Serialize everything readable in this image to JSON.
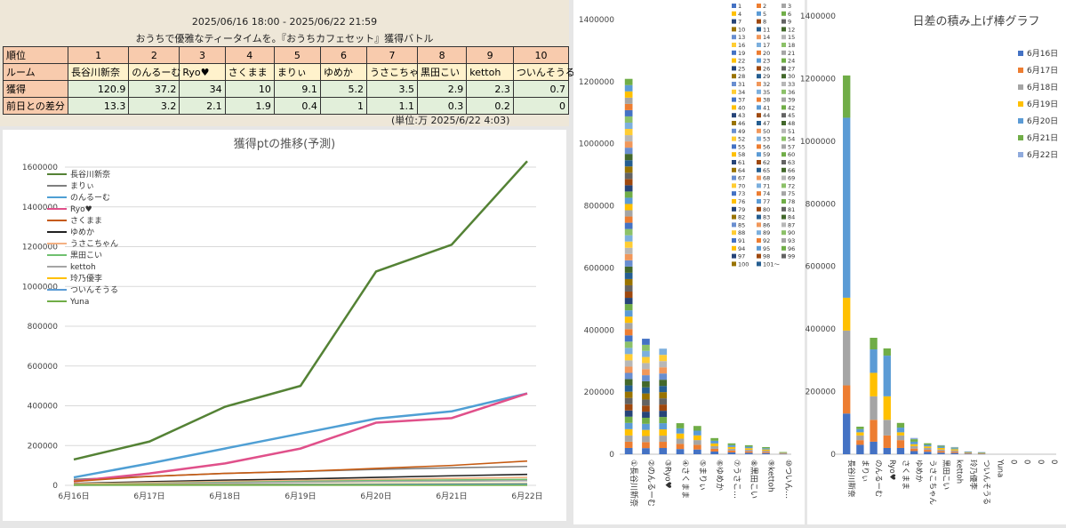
{
  "header": {
    "period": "2025/06/16 18:00 - 2025/06/22 21:59",
    "subtitle": "おうちで優雅なティータイムを。『おうちカフェセット』獲得バトル",
    "unit_note": "(単位:万  2025/6/22 4:03)"
  },
  "table": {
    "row_labels": [
      "順位",
      "ルーム",
      "獲得",
      "前日との差分"
    ],
    "ranks": [
      "1",
      "2",
      "3",
      "4",
      "5",
      "6",
      "7",
      "8",
      "9",
      "10"
    ],
    "rooms": [
      "長谷川新奈",
      "のんるーむ",
      "Ryo♥",
      "さくまま",
      "まりぃ",
      "ゆめか",
      "うさこちゃ",
      "黒田こい",
      "kettoh",
      "ついんそうる"
    ],
    "scores": [
      "120.9",
      "37.2",
      "34",
      "10",
      "9.1",
      "5.2",
      "3.5",
      "2.9",
      "2.3",
      "0.7"
    ],
    "diffs": [
      "13.3",
      "3.2",
      "2.1",
      "1.9",
      "0.4",
      "1",
      "1.1",
      "0.3",
      "0.2",
      "0"
    ]
  },
  "line_chart": {
    "title": "獲得ptの推移(予測)",
    "colors": {
      "長谷川新奈": "#548235",
      "まりぃ": "#7f7f7f",
      "のんるーむ": "#4f9fd4",
      "Ryo♥": "#e0508a",
      "さくまま": "#c55a11",
      "ゆめか": "#222222",
      "うさこちゃん": "#f4b183",
      "黒田こい": "#70c070",
      "kettoh": "#a5a5a5",
      "玲乃優李": "#ffc000",
      "ついんそうる": "#5b9bd5",
      "Yuna": "#70ad47"
    }
  },
  "mid_chart": {
    "categories": [
      "①長谷川新奈",
      "②のんるーむ",
      "③Ryo♥",
      "④さくまま",
      "⑤まりぃ",
      "⑥ゆめか",
      "⑦うさこ…",
      "⑧黒田こい",
      "⑨kettoh",
      "⑩ついん…"
    ],
    "legend": [
      "1",
      "2",
      "3",
      "4",
      "5",
      "6",
      "7",
      "8",
      "9",
      "10",
      "11",
      "12",
      "13",
      "14",
      "15",
      "16",
      "17",
      "18",
      "19",
      "20",
      "21",
      "22",
      "23",
      "24",
      "25",
      "26",
      "27",
      "28",
      "29",
      "30",
      "31",
      "32",
      "33",
      "34",
      "35",
      "36",
      "37",
      "38",
      "39",
      "40",
      "41",
      "42",
      "43",
      "44",
      "45",
      "46",
      "47",
      "48",
      "49",
      "50",
      "51",
      "52",
      "53",
      "54",
      "55",
      "56",
      "57",
      "58",
      "59",
      "60",
      "61",
      "62",
      "63",
      "64",
      "65",
      "66",
      "67",
      "68",
      "69",
      "70",
      "71",
      "72",
      "73",
      "74",
      "75",
      "76",
      "77",
      "78",
      "79",
      "80",
      "81",
      "82",
      "83",
      "84",
      "85",
      "86",
      "87",
      "88",
      "89",
      "90",
      "91",
      "92",
      "93",
      "94",
      "95",
      "96",
      "97",
      "98",
      "99",
      "100",
      "101～"
    ]
  },
  "right_chart": {
    "title": "日差の積み上げ棒グラフ",
    "categories": [
      "長谷川新奈",
      "まりぃ",
      "のんるーむ",
      "Ryo♥",
      "さくまま",
      "ゆめか",
      "うさこちゃん",
      "黒田こい",
      "kettoh",
      "玲乃優李",
      "ついんそうる",
      "Yuna",
      "0",
      "0",
      "0",
      "0"
    ],
    "legend": [
      "6月16日",
      "6月17日",
      "6月18日",
      "6月19日",
      "6月20日",
      "6月21日",
      "6月22日"
    ],
    "colors": [
      "#4472c4",
      "#ed7d31",
      "#a5a5a5",
      "#ffc000",
      "#5b9bd5",
      "#70ad47",
      "#8faadc"
    ]
  },
  "chart_data": [
    {
      "type": "line",
      "title": "獲得ptの推移(予測)",
      "x": [
        "6月16日",
        "6月17日",
        "6月18日",
        "6月19日",
        "6月20日",
        "6月21日",
        "6月22日"
      ],
      "ylim": [
        0,
        1600000
      ],
      "yticks": [
        0,
        200000,
        400000,
        600000,
        800000,
        1000000,
        1200000,
        1400000,
        1600000
      ],
      "series": [
        {
          "name": "長谷川新奈",
          "values": [
            130000,
            220000,
            395000,
            500000,
            1075000,
            1210000,
            1630000
          ]
        },
        {
          "name": "まりぃ",
          "values": [
            30000,
            45000,
            60000,
            70000,
            80000,
            88000,
            95000
          ]
        },
        {
          "name": "のんるーむ",
          "values": [
            40000,
            110000,
            185000,
            260000,
            335000,
            372000,
            462000
          ]
        },
        {
          "name": "Ryo♥",
          "values": [
            20000,
            60000,
            110000,
            185000,
            315000,
            338000,
            462000
          ]
        },
        {
          "name": "さくまま",
          "values": [
            20000,
            45000,
            60000,
            70000,
            85000,
            100000,
            122000
          ]
        },
        {
          "name": "ゆめか",
          "values": [
            10000,
            18000,
            26000,
            32000,
            40000,
            48000,
            55000
          ]
        },
        {
          "name": "うさこちゃん",
          "values": [
            8000,
            14000,
            20000,
            25000,
            30000,
            35000,
            40000
          ]
        },
        {
          "name": "黒田こい",
          "values": [
            5000,
            10000,
            15000,
            20000,
            24000,
            27000,
            30000
          ]
        },
        {
          "name": "kettoh",
          "values": [
            4000,
            8000,
            12000,
            16000,
            19000,
            21000,
            23000
          ]
        },
        {
          "name": "玲乃優李",
          "values": [
            2000,
            4000,
            5000,
            6000,
            7000,
            8000,
            9000
          ]
        },
        {
          "name": "ついんそうる",
          "values": [
            1000,
            2000,
            3000,
            4000,
            5000,
            6000,
            7000
          ]
        },
        {
          "name": "Yuna",
          "values": [
            1000,
            1000,
            1000,
            1000,
            1000,
            1000,
            1000
          ]
        }
      ]
    },
    {
      "type": "bar",
      "stacked": true,
      "categories": [
        "①長谷川新奈",
        "②のんるーむ",
        "③Ryo♥",
        "④さくまま",
        "⑤まりぃ",
        "⑥ゆめか",
        "⑦うさこ…",
        "⑧黒田こい",
        "⑨kettoh",
        "⑩ついん…"
      ],
      "values": [
        1209000,
        372000,
        340000,
        100000,
        91000,
        52000,
        35000,
        29000,
        23000,
        7000
      ],
      "ylim": [
        0,
        1400000
      ],
      "yticks": [
        0,
        200000,
        400000,
        600000,
        800000,
        1000000,
        1200000,
        1400000
      ]
    },
    {
      "type": "bar",
      "stacked": true,
      "title": "日差の積み上げ棒グラフ",
      "categories": [
        "長谷川新奈",
        "まりぃ",
        "のんるーむ",
        "Ryo♥",
        "さくまま",
        "ゆめか",
        "うさこちゃん",
        "黒田こい",
        "kettoh",
        "玲乃優李",
        "ついんそうる",
        "Yuna",
        "0",
        "0",
        "0",
        "0"
      ],
      "ylim": [
        0,
        1400000
      ],
      "yticks": [
        0,
        200000,
        400000,
        600000,
        800000,
        1000000,
        1200000,
        1400000
      ],
      "series": [
        {
          "name": "6月16日",
          "values": [
            130000,
            30000,
            40000,
            20000,
            20000,
            10000,
            8000,
            5000,
            4000,
            2000,
            1000,
            0,
            0,
            0,
            0,
            0
          ]
        },
        {
          "name": "6月17日",
          "values": [
            90000,
            15000,
            70000,
            40000,
            25000,
            8000,
            6000,
            5000,
            4000,
            2000,
            1000,
            0,
            0,
            0,
            0,
            0
          ]
        },
        {
          "name": "6月18日",
          "values": [
            175000,
            15000,
            75000,
            50000,
            15000,
            8000,
            6000,
            5000,
            4000,
            1000,
            1000,
            0,
            0,
            0,
            0,
            0
          ]
        },
        {
          "name": "6月19日",
          "values": [
            105000,
            10000,
            75000,
            75000,
            10000,
            6000,
            5000,
            5000,
            4000,
            1000,
            1000,
            0,
            0,
            0,
            0,
            0
          ]
        },
        {
          "name": "6月20日",
          "values": [
            575000,
            10000,
            75000,
            130000,
            15000,
            8000,
            5000,
            4000,
            3000,
            1000,
            1000,
            0,
            0,
            0,
            0,
            0
          ]
        },
        {
          "name": "6月21日",
          "values": [
            135000,
            8000,
            37000,
            23000,
            15000,
            8000,
            5000,
            3000,
            2000,
            1000,
            1000,
            0,
            0,
            0,
            0,
            0
          ]
        },
        {
          "name": "6月22日",
          "values": [
            0,
            0,
            0,
            0,
            0,
            4000,
            0,
            2000,
            2000,
            1000,
            1000,
            0,
            0,
            0,
            0,
            0
          ]
        }
      ]
    }
  ]
}
